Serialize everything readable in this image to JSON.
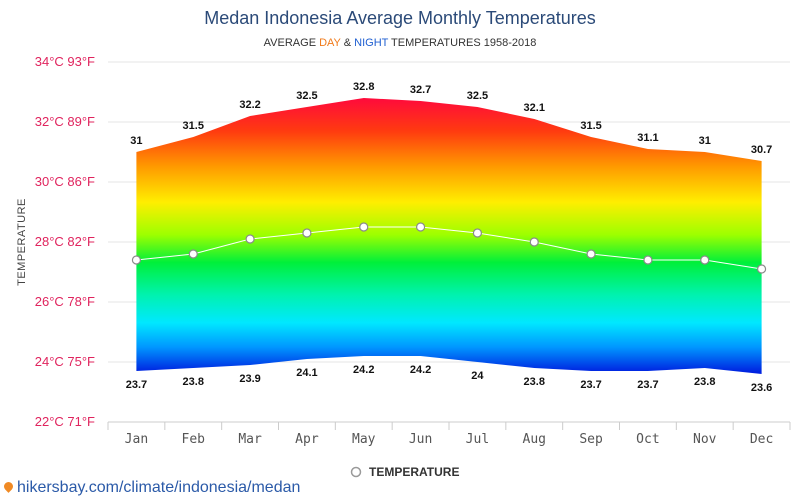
{
  "chart_data": {
    "type": "area",
    "title": "Medan Indonesia Average Monthly Temperatures",
    "subtitle": {
      "prefix": "AVERAGE ",
      "day": "DAY",
      "amp": " & ",
      "night": "NIGHT",
      "suffix": " TEMPERATURES 1958-2018"
    },
    "ylabel": "TEMPERATURE",
    "ylim": [
      22,
      34
    ],
    "yticks": [
      {
        "value": 34,
        "label": "34°C 93°F"
      },
      {
        "value": 32,
        "label": "32°C 89°F"
      },
      {
        "value": 30,
        "label": "30°C 86°F"
      },
      {
        "value": 28,
        "label": "28°C 82°F"
      },
      {
        "value": 26,
        "label": "26°C 78°F"
      },
      {
        "value": 24,
        "label": "24°C 75°F"
      },
      {
        "value": 22,
        "label": "22°C 71°F"
      }
    ],
    "categories": [
      "Jan",
      "Feb",
      "Mar",
      "Apr",
      "May",
      "Jun",
      "Jul",
      "Aug",
      "Sep",
      "Oct",
      "Nov",
      "Dec"
    ],
    "series": [
      {
        "values": [
          31,
          31.5,
          32.2,
          32.5,
          32.8,
          32.7,
          32.5,
          32.1,
          31.5,
          31.1,
          31,
          30.7
        ]
      },
      {
        "values": [
          23.7,
          23.8,
          23.9,
          24.1,
          24.2,
          24.2,
          24,
          23.8,
          23.7,
          23.7,
          23.8,
          23.6
        ]
      },
      {
        "name": "TEMPERATURE",
        "values": [
          27.4,
          27.6,
          28.1,
          28.3,
          28.5,
          28.5,
          28.3,
          28.0,
          27.6,
          27.4,
          27.4,
          27.1
        ]
      }
    ],
    "grid": true,
    "legend": "bottom-center",
    "colors": {
      "day_word": "#f07a1a",
      "night_word": "#1f5fd1",
      "line": "#ffffff",
      "ytick": "#e0245e"
    }
  },
  "source": {
    "text": "hikersbay.com/climate/indonesia/medan",
    "icon": "map-pin-icon"
  }
}
